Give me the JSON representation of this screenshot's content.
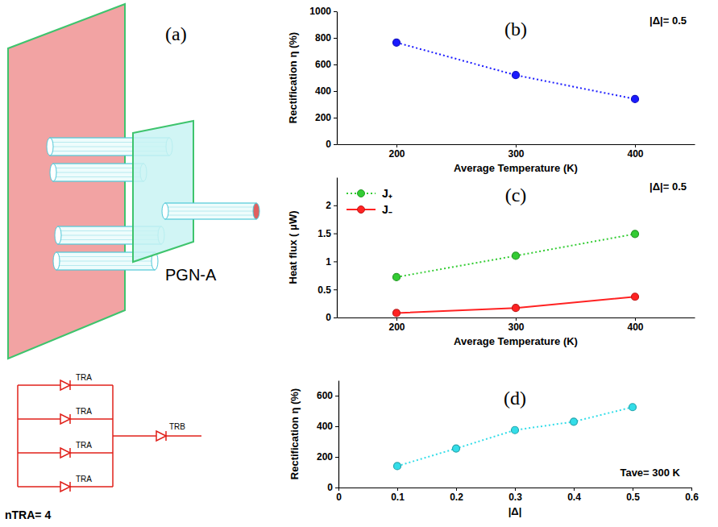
{
  "diagram": {
    "label": "(a)",
    "name": "PGN-A",
    "circuit": {
      "branches": [
        "TRA",
        "TRA",
        "TRA",
        "TRA"
      ],
      "output": "TRB",
      "caption": "nTRA= 4"
    }
  },
  "chart_data": [
    {
      "type": "line",
      "annotations": [
        "(b)",
        "|Δ|= 0.5"
      ],
      "xlabel": "Average Temperature (K)",
      "ylabel": "Rectification η (%)",
      "x": [
        200,
        300,
        400
      ],
      "values": [
        765,
        520,
        340
      ],
      "color": "#1a1aff",
      "line_style": "dotted",
      "marker": "circle",
      "xlim": [
        150,
        450
      ],
      "xticks": [
        200,
        300,
        400
      ],
      "ylim": [
        0,
        1000
      ],
      "yticks": [
        0,
        200,
        400,
        600,
        800,
        1000
      ]
    },
    {
      "type": "line",
      "annotations": [
        "(c)",
        "|Δ|= 0.5"
      ],
      "xlabel": "Average Temperature (K)",
      "ylabel": "Heat flux ( μW)",
      "x": [
        200,
        300,
        400
      ],
      "series": [
        {
          "name": "J₊",
          "color": "#33cc33",
          "line_style": "dotted",
          "marker": "circle",
          "values": [
            0.72,
            1.1,
            1.49
          ]
        },
        {
          "name": "J₋",
          "color": "#ff2222",
          "line_style": "solid",
          "marker": "circle",
          "values": [
            0.08,
            0.17,
            0.37
          ]
        }
      ],
      "legend": "upper left",
      "xlim": [
        150,
        450
      ],
      "xticks": [
        200,
        300,
        400
      ],
      "ylim": [
        0,
        2.5
      ],
      "yticks": [
        0,
        0.5,
        1,
        1.5,
        2
      ]
    },
    {
      "type": "line",
      "annotations": [
        "(d)",
        "Tave= 300 K"
      ],
      "xlabel": "|Δ|",
      "ylabel": "Rectification η (%)",
      "x": [
        0.1,
        0.2,
        0.3,
        0.4,
        0.5
      ],
      "values": [
        140,
        255,
        375,
        430,
        525
      ],
      "color": "#33dde8",
      "line_style": "dotted",
      "marker": "circle",
      "xlim": [
        0,
        0.6
      ],
      "xticks": [
        0,
        0.1,
        0.2,
        0.3,
        0.4,
        0.5,
        0.6
      ],
      "ylim": [
        0,
        700
      ],
      "yticks": [
        0,
        200,
        400,
        600
      ]
    }
  ]
}
